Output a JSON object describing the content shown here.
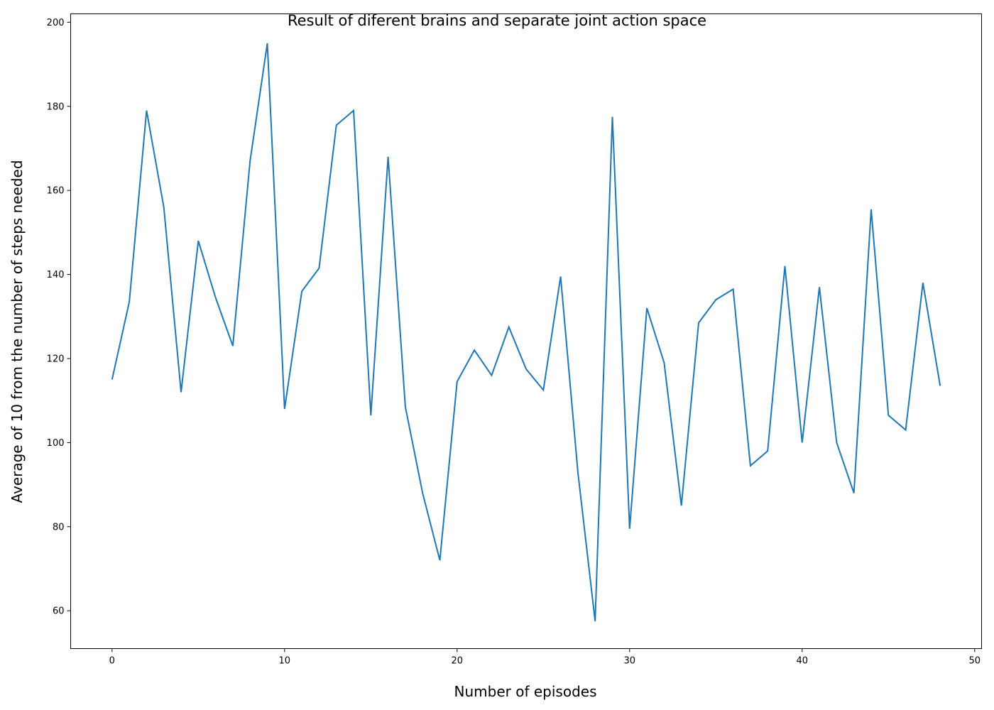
{
  "chart_data": {
    "type": "line",
    "title": "Result of diferent brains and separate joint action space",
    "xlabel": "Number of episodes",
    "ylabel": "Average of 10 from the number of steps needed",
    "xlim": [
      -2.4,
      50.4
    ],
    "ylim": [
      51,
      202
    ],
    "xticks": [
      0,
      10,
      20,
      30,
      40,
      50
    ],
    "yticks": [
      60,
      80,
      100,
      120,
      140,
      160,
      180,
      200
    ],
    "grid": false,
    "line_color": "#1f77b4",
    "series": [
      {
        "x": [
          0,
          1,
          2,
          3,
          4,
          5,
          6,
          7,
          8,
          9,
          10,
          11,
          12,
          13,
          14,
          15,
          16,
          17,
          18,
          19,
          20,
          21,
          22,
          23,
          24,
          25,
          26,
          27,
          28,
          29,
          30,
          31,
          32,
          33,
          34,
          35,
          36,
          37,
          38,
          39,
          40,
          41,
          42,
          43,
          44,
          45,
          46,
          47,
          48
        ],
        "values": [
          115,
          133.5,
          179,
          156,
          112,
          148,
          134.5,
          123,
          167,
          195,
          108,
          136,
          141.5,
          175.5,
          179,
          106.5,
          168,
          108.5,
          88,
          72,
          114.5,
          122,
          116,
          127.5,
          117.5,
          112.5,
          139.5,
          93,
          57.5,
          177.5,
          79.5,
          132,
          119,
          85,
          128.5,
          134,
          136.5,
          94.5,
          98,
          142,
          100,
          137,
          100,
          88,
          155.5,
          106.5,
          103,
          138,
          113.5
        ]
      }
    ]
  }
}
